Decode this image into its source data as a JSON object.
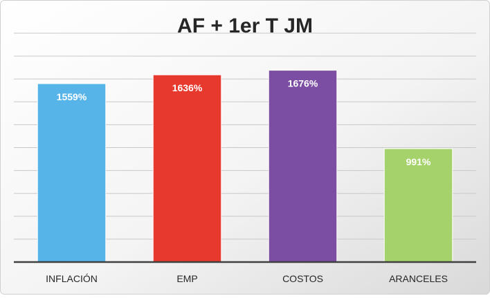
{
  "chart_data": {
    "type": "bar",
    "title": "AF + 1er T JM",
    "categories": [
      "INFLACIÓN",
      "EMP",
      "COSTOS",
      "ARANCELES"
    ],
    "values": [
      1559,
      1636,
      1676,
      991
    ],
    "value_labels": [
      "1559%",
      "1636%",
      "1676%",
      "991%"
    ],
    "unit": "%",
    "colors": [
      "#56B4E9",
      "#E8392F",
      "#7B4EA3",
      "#A5D26A"
    ],
    "ylim": [
      0,
      2000
    ],
    "grid": true,
    "legend": "none",
    "xlabel": "",
    "ylabel": ""
  }
}
